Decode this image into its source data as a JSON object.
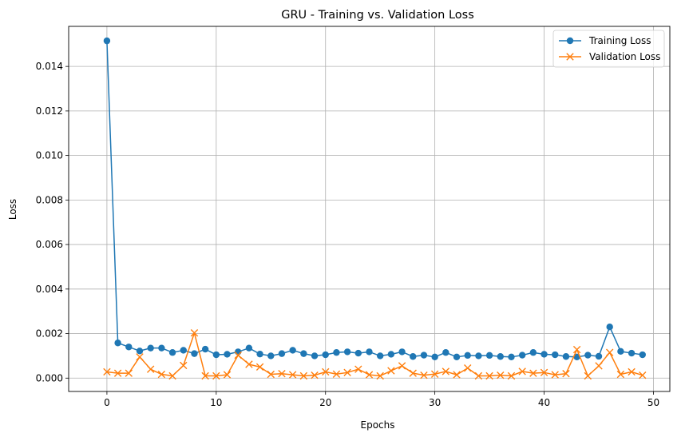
{
  "chart_data": {
    "type": "line",
    "title": "GRU - Training vs. Validation Loss",
    "xlabel": "Epochs",
    "ylabel": "Loss",
    "xlim": [
      -3.5,
      51.5
    ],
    "ylim": [
      -0.0006,
      0.0158
    ],
    "xticks": [
      0,
      10,
      20,
      30,
      40,
      50
    ],
    "yticks": [
      0.0,
      0.002,
      0.004,
      0.006,
      0.008,
      0.01,
      0.012,
      0.014
    ],
    "ytick_labels": [
      "0.000",
      "0.002",
      "0.004",
      "0.006",
      "0.008",
      "0.010",
      "0.012",
      "0.014"
    ],
    "grid": true,
    "legend_position": "top-right",
    "x": [
      0,
      1,
      2,
      3,
      4,
      5,
      6,
      7,
      8,
      9,
      10,
      11,
      12,
      13,
      14,
      15,
      16,
      17,
      18,
      19,
      20,
      21,
      22,
      23,
      24,
      25,
      26,
      27,
      28,
      29,
      30,
      31,
      32,
      33,
      34,
      35,
      36,
      37,
      38,
      39,
      40,
      41,
      42,
      43,
      44,
      45,
      46,
      47,
      48,
      49
    ],
    "series": [
      {
        "name": "Training Loss",
        "color": "#1f77b4",
        "marker": "circle",
        "values": [
          0.01515,
          0.00158,
          0.0014,
          0.00122,
          0.00135,
          0.00135,
          0.00115,
          0.00125,
          0.0011,
          0.0013,
          0.00105,
          0.00107,
          0.00118,
          0.00135,
          0.00108,
          0.001,
          0.0011,
          0.00125,
          0.0011,
          0.001,
          0.00105,
          0.00115,
          0.00118,
          0.00112,
          0.00118,
          0.001,
          0.00107,
          0.00118,
          0.00097,
          0.00103,
          0.00095,
          0.00115,
          0.00095,
          0.00102,
          0.001,
          0.00102,
          0.00097,
          0.00095,
          0.00103,
          0.00115,
          0.00107,
          0.00105,
          0.00097,
          0.00095,
          0.00103,
          0.00098,
          0.0023,
          0.0012,
          0.00112,
          0.00105
        ]
      },
      {
        "name": "Validation Loss",
        "color": "#ff7f0e",
        "marker": "x",
        "values": [
          0.00028,
          0.00022,
          0.00022,
          0.00095,
          0.0004,
          0.00017,
          0.0001,
          0.00057,
          0.00203,
          0.0001,
          0.0001,
          0.00015,
          0.00103,
          0.00062,
          0.0005,
          0.00017,
          0.0002,
          0.00015,
          0.0001,
          0.00013,
          0.00028,
          0.00018,
          0.00025,
          0.0004,
          0.00015,
          0.0001,
          0.00033,
          0.00055,
          0.00022,
          0.00013,
          0.00018,
          0.0003,
          0.00015,
          0.00045,
          0.0001,
          0.0001,
          0.00013,
          0.0001,
          0.0003,
          0.00022,
          0.00025,
          0.00015,
          0.0002,
          0.00128,
          0.0001,
          0.00055,
          0.00115,
          0.00017,
          0.00028,
          0.00013
        ]
      }
    ]
  }
}
